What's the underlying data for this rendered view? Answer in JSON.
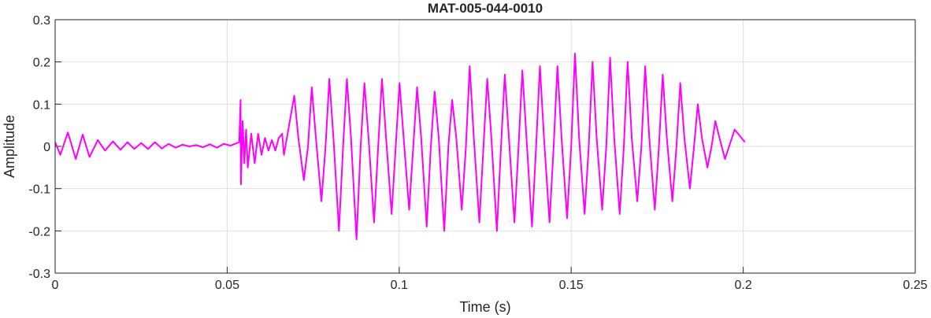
{
  "chart_data": {
    "type": "line",
    "title": "MAT-005-044-0010",
    "xlabel": "Time (s)",
    "ylabel": "Amplitude",
    "xlim": [
      0,
      0.25
    ],
    "xticks": [
      0,
      0.05,
      0.1,
      0.15,
      0.2,
      0.25
    ],
    "ylim": [
      -0.3,
      0.3
    ],
    "yticks": [
      -0.3,
      -0.2,
      -0.1,
      0,
      0.1,
      0.2,
      0.3
    ],
    "grid": true,
    "series": [
      {
        "color": "#ff00ff",
        "x": [
          0,
          0.0015,
          0.0037,
          0.006,
          0.008,
          0.01,
          0.0124,
          0.0145,
          0.0168,
          0.019,
          0.021,
          0.023,
          0.025,
          0.027,
          0.029,
          0.031,
          0.033,
          0.035,
          0.037,
          0.039,
          0.041,
          0.043,
          0.045,
          0.047,
          0.049,
          0.051,
          0.0535,
          0.0539,
          0.054,
          0.0545,
          0.055,
          0.0555,
          0.056,
          0.057,
          0.058,
          0.059,
          0.06,
          0.061,
          0.062,
          0.063,
          0.064,
          0.065,
          0.066,
          0.0665,
          0.0695,
          0.0707,
          0.0723,
          0.0735,
          0.0746,
          0.0758,
          0.0774,
          0.0786,
          0.0797,
          0.0809,
          0.0825,
          0.0837,
          0.0848,
          0.086,
          0.0876,
          0.0888,
          0.0899,
          0.0911,
          0.0927,
          0.0939,
          0.095,
          0.0962,
          0.0978,
          0.099,
          0.1001,
          0.1013,
          0.1029,
          0.1041,
          0.1052,
          0.1064,
          0.108,
          0.1092,
          0.1103,
          0.1115,
          0.1131,
          0.1143,
          0.1154,
          0.1166,
          0.1182,
          0.1194,
          0.1205,
          0.1217,
          0.1233,
          0.1245,
          0.1256,
          0.1268,
          0.1284,
          0.1296,
          0.1307,
          0.1319,
          0.1335,
          0.1347,
          0.1358,
          0.137,
          0.1386,
          0.1398,
          0.1409,
          0.1421,
          0.1437,
          0.1449,
          0.146,
          0.1472,
          0.1488,
          0.15,
          0.1511,
          0.1523,
          0.1539,
          0.1551,
          0.1562,
          0.1574,
          0.159,
          0.1602,
          0.1613,
          0.1625,
          0.1641,
          0.1653,
          0.1664,
          0.1676,
          0.1692,
          0.1704,
          0.1715,
          0.1727,
          0.1743,
          0.1755,
          0.1766,
          0.1778,
          0.1794,
          0.1806,
          0.1817,
          0.1829,
          0.1845,
          0.1857,
          0.1868,
          0.188,
          0.1896,
          0.1908,
          0.1919,
          0.1931,
          0.1947,
          0.1959,
          0.1975,
          0.2005
        ],
        "values": [
          0.01,
          -0.02,
          0.033,
          -0.03,
          0.028,
          -0.025,
          0.015,
          -0.01,
          0.012,
          -0.008,
          0.01,
          -0.006,
          0.008,
          -0.006,
          0.01,
          -0.005,
          0.006,
          -0.003,
          0.004,
          0,
          0.003,
          -0.002,
          0.005,
          -0.003,
          0.006,
          0.002,
          0.01,
          0.11,
          -0.09,
          0.06,
          -0.04,
          0.04,
          -0.05,
          0.03,
          -0.04,
          0.03,
          -0.02,
          0.02,
          -0.01,
          0.015,
          -0.01,
          0.02,
          0.03,
          -0.02,
          0.12,
          0.02,
          -0.08,
          0,
          0.14,
          0.02,
          -0.13,
          0,
          0.16,
          0.02,
          -0.2,
          0,
          0.16,
          0.02,
          -0.22,
          0,
          0.15,
          0.02,
          -0.18,
          0,
          0.16,
          0.02,
          -0.16,
          0,
          0.15,
          0.02,
          -0.15,
          0,
          0.14,
          0.02,
          -0.19,
          0,
          0.13,
          0.02,
          -0.2,
          0,
          0.11,
          0.02,
          -0.15,
          0,
          0.19,
          0.02,
          -0.18,
          0,
          0.16,
          0.02,
          -0.2,
          0,
          0.17,
          0.02,
          -0.18,
          0,
          0.18,
          0.02,
          -0.19,
          0,
          0.19,
          0.02,
          -0.18,
          0,
          0.19,
          0.02,
          -0.17,
          0,
          0.22,
          0.02,
          -0.16,
          0,
          0.2,
          0.02,
          -0.15,
          0,
          0.21,
          0.02,
          -0.16,
          0,
          0.2,
          0.02,
          -0.13,
          0,
          0.19,
          0.02,
          -0.15,
          0,
          0.17,
          0.02,
          -0.13,
          0,
          0.15,
          0.02,
          -0.1,
          0,
          0.1,
          0.02,
          -0.05,
          0,
          0.06,
          0.02,
          -0.03,
          0,
          0.04,
          0.01
        ]
      }
    ]
  }
}
